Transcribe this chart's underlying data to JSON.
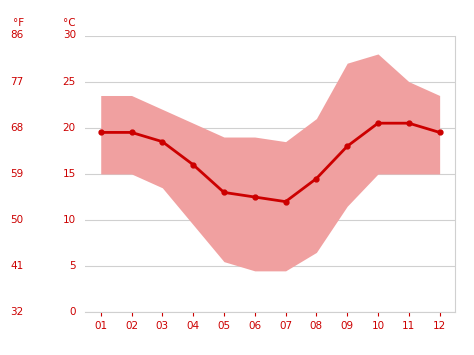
{
  "months": [
    1,
    2,
    3,
    4,
    5,
    6,
    7,
    8,
    9,
    10,
    11,
    12
  ],
  "month_labels": [
    "01",
    "02",
    "03",
    "04",
    "05",
    "06",
    "07",
    "08",
    "09",
    "10",
    "11",
    "12"
  ],
  "avg_temp": [
    19.5,
    19.5,
    18.5,
    16.0,
    13.0,
    12.5,
    12.0,
    14.5,
    18.0,
    20.5,
    20.5,
    19.5
  ],
  "temp_high": [
    23.5,
    23.5,
    22.0,
    20.5,
    19.0,
    19.0,
    18.5,
    21.0,
    27.0,
    28.0,
    25.0,
    23.5
  ],
  "temp_low": [
    15.0,
    15.0,
    13.5,
    9.5,
    5.5,
    4.5,
    4.5,
    6.5,
    11.5,
    15.0,
    15.0,
    15.0
  ],
  "line_color": "#cc0000",
  "band_color": "#f0a0a0",
  "background_color": "#ffffff",
  "grid_color": "#d0d0d0",
  "axes_color": "#cc0000",
  "ylim_min": 0,
  "ylim_max": 30,
  "yticks_c": [
    0,
    5,
    10,
    15,
    20,
    25,
    30
  ],
  "yticks_f": [
    32,
    41,
    50,
    59,
    68,
    77,
    86
  ],
  "header_f": "°F",
  "header_c": "°C"
}
